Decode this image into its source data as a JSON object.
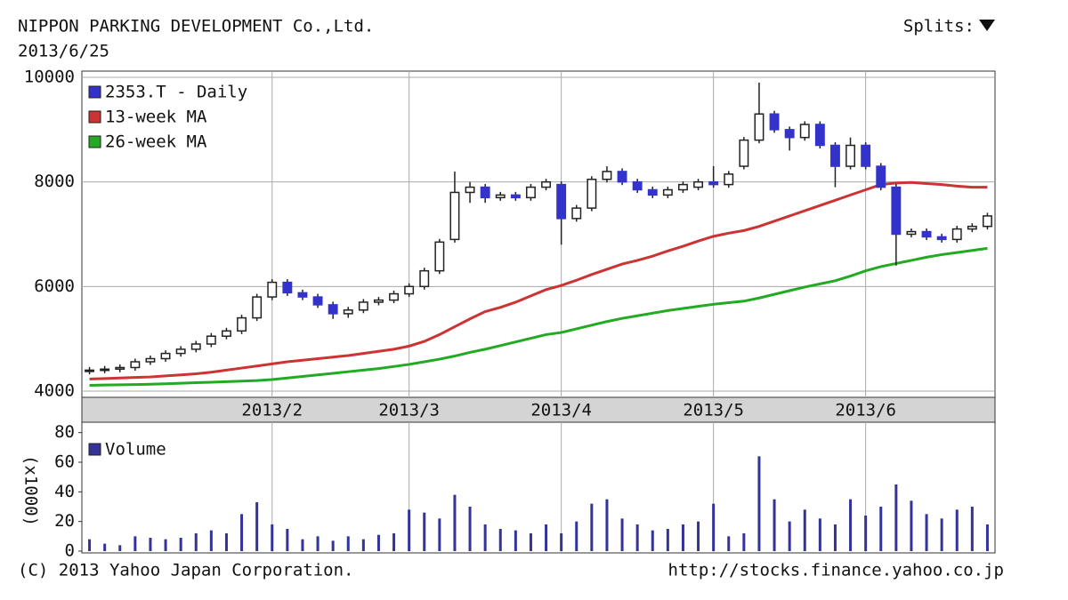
{
  "page": {
    "splits": "Splits:",
    "copyright": "(C) 2013 Yahoo Japan Corporation.",
    "url": "http://stocks.finance.yahoo.co.jp"
  },
  "chart_data": [
    {
      "type": "candlestick",
      "title": "NIPPON PARKING DEVELOPMENT Co.,Ltd.",
      "subtitle": "2013/6/25",
      "name": "2353.T - Daily",
      "color": "#3333cc",
      "legend": "upper left",
      "grid": true,
      "categories": [
        null,
        null,
        null,
        null,
        null,
        null,
        null,
        null,
        null,
        null,
        null,
        null,
        "2013/2",
        null,
        null,
        null,
        null,
        null,
        null,
        null,
        null,
        "2013/3",
        null,
        null,
        null,
        null,
        null,
        null,
        null,
        null,
        null,
        "2013/4",
        null,
        null,
        null,
        null,
        null,
        null,
        null,
        null,
        null,
        "2013/5",
        null,
        null,
        null,
        null,
        null,
        null,
        null,
        null,
        null,
        "2013/6",
        null,
        null,
        null,
        null,
        null,
        null,
        null,
        null
      ],
      "open": [
        4380,
        4400,
        4420,
        4450,
        4560,
        4620,
        4720,
        4800,
        4900,
        5050,
        5150,
        5400,
        5800,
        6080,
        5880,
        5800,
        5650,
        5480,
        5550,
        5700,
        5740,
        5860,
        6000,
        6300,
        6900,
        7800,
        7900,
        7700,
        7750,
        7700,
        7900,
        7950,
        7300,
        7500,
        8050,
        8200,
        8000,
        7850,
        7750,
        7850,
        7900,
        8000,
        7950,
        8300,
        8800,
        9300,
        9000,
        8850,
        9100,
        8700,
        8300,
        8700,
        8300,
        7900,
        7000,
        7050,
        6950,
        6900,
        7100,
        7150
      ],
      "high": [
        4460,
        4480,
        4510,
        4620,
        4680,
        4780,
        4860,
        4960,
        5110,
        5210,
        5460,
        5860,
        6140,
        6140,
        5940,
        5860,
        5710,
        5610,
        5760,
        5800,
        5920,
        6060,
        6360,
        6910,
        8200,
        8000,
        7960,
        7810,
        7810,
        7960,
        8060,
        8010,
        7560,
        8110,
        8300,
        8260,
        8060,
        7910,
        7910,
        8010,
        8060,
        8300,
        8210,
        8860,
        9900,
        9360,
        9060,
        9160,
        9160,
        8760,
        8850,
        8760,
        8360,
        7960,
        7110,
        7110,
        7010,
        7160,
        7210,
        7410
      ],
      "low": [
        4320,
        4340,
        4360,
        4390,
        4500,
        4560,
        4660,
        4740,
        4840,
        4990,
        5090,
        5340,
        5740,
        5820,
        5740,
        5590,
        5380,
        5400,
        5490,
        5640,
        5680,
        5800,
        5940,
        6240,
        6840,
        7600,
        7600,
        7640,
        7640,
        7640,
        7840,
        6800,
        7240,
        7440,
        7990,
        7940,
        7790,
        7690,
        7690,
        7790,
        7840,
        7890,
        7890,
        8240,
        8740,
        8940,
        8600,
        8790,
        8640,
        7900,
        8240,
        8240,
        7840,
        6400,
        6940,
        6890,
        6840,
        6840,
        7040,
        7090
      ],
      "close": [
        4400,
        4420,
        4450,
        4560,
        4620,
        4720,
        4800,
        4900,
        5050,
        5150,
        5400,
        5800,
        6080,
        5880,
        5800,
        5650,
        5480,
        5550,
        5700,
        5740,
        5860,
        6000,
        6300,
        6850,
        7800,
        7900,
        7700,
        7750,
        7700,
        7900,
        8000,
        7300,
        7500,
        8050,
        8200,
        8000,
        7850,
        7750,
        7850,
        7950,
        8000,
        7950,
        8150,
        8800,
        9300,
        9000,
        8850,
        9100,
        8700,
        8300,
        8700,
        8300,
        7900,
        7000,
        7050,
        6950,
        6900,
        7100,
        7150,
        7350
      ],
      "series": [
        {
          "name": "13-week MA",
          "color": "#cc3333",
          "values": [
            4230,
            4240,
            4250,
            4260,
            4270,
            4290,
            4310,
            4330,
            4360,
            4400,
            4440,
            4480,
            4520,
            4560,
            4590,
            4620,
            4650,
            4680,
            4720,
            4760,
            4800,
            4860,
            4950,
            5080,
            5230,
            5380,
            5520,
            5600,
            5700,
            5820,
            5940,
            6020,
            6120,
            6230,
            6330,
            6430,
            6500,
            6580,
            6680,
            6770,
            6870,
            6960,
            7020,
            7070,
            7150,
            7250,
            7350,
            7450,
            7550,
            7650,
            7750,
            7850,
            7950,
            7980,
            7990,
            7970,
            7950,
            7920,
            7900,
            7900
          ]
        },
        {
          "name": "26-week MA",
          "color": "#22aa22",
          "values": [
            4110,
            4115,
            4120,
            4125,
            4130,
            4140,
            4150,
            4160,
            4170,
            4180,
            4190,
            4200,
            4220,
            4250,
            4280,
            4310,
            4340,
            4370,
            4400,
            4430,
            4470,
            4510,
            4560,
            4610,
            4670,
            4740,
            4800,
            4870,
            4940,
            5010,
            5080,
            5120,
            5190,
            5260,
            5330,
            5390,
            5440,
            5490,
            5540,
            5580,
            5620,
            5660,
            5690,
            5720,
            5780,
            5850,
            5920,
            5990,
            6050,
            6110,
            6200,
            6300,
            6380,
            6440,
            6500,
            6560,
            6610,
            6650,
            6690,
            6730
          ]
        }
      ],
      "ylim": [
        3880,
        10120
      ],
      "yticks": [
        4000,
        6000,
        8000,
        10000
      ]
    },
    {
      "type": "bar",
      "name": "Volume",
      "y_label": "(x1000)",
      "color": "#333399",
      "values": [
        8,
        5,
        4,
        10,
        9,
        8,
        9,
        12,
        14,
        12,
        25,
        33,
        18,
        15,
        8,
        10,
        7,
        10,
        8,
        11,
        12,
        28,
        26,
        22,
        38,
        30,
        18,
        15,
        14,
        12,
        18,
        12,
        20,
        32,
        35,
        22,
        18,
        14,
        15,
        18,
        20,
        32,
        10,
        12,
        64,
        35,
        20,
        28,
        22,
        18,
        35,
        24,
        30,
        45,
        34,
        25,
        22,
        28,
        30,
        18
      ],
      "ylim": [
        0,
        87
      ],
      "yticks": [
        0,
        20,
        40,
        60,
        80
      ]
    }
  ]
}
